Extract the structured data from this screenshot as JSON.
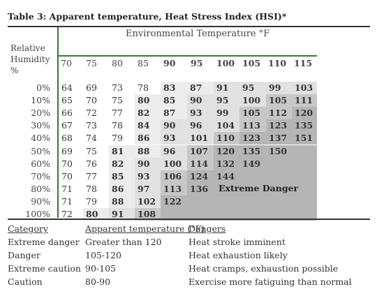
{
  "title": "Table 3: Apparent temperature, Heat Stress Index (HSI)*",
  "header": {
    "environmental_label": "Environmental Temperature °F",
    "rh_label": "Relative Humidity %",
    "temps": [
      "70",
      "75",
      "80",
      "85",
      "90",
      "95",
      "100",
      "105",
      "110",
      "115"
    ],
    "bold_from_index": 4
  },
  "rows": [
    {
      "rh": "0%",
      "vals": [
        "64",
        "69",
        "73",
        "78",
        "83",
        "87",
        "91",
        "95",
        "99",
        "103"
      ]
    },
    {
      "rh": "10%",
      "vals": [
        "65",
        "70",
        "75",
        "80",
        "85",
        "90",
        "95",
        "100",
        "105",
        "111"
      ]
    },
    {
      "rh": "20%",
      "vals": [
        "66",
        "72",
        "77",
        "82",
        "87",
        "93",
        "99",
        "105",
        "112",
        "120"
      ]
    },
    {
      "rh": "30%",
      "vals": [
        "67",
        "73",
        "78",
        "84",
        "90",
        "96",
        "104",
        "113",
        "123",
        "135"
      ]
    },
    {
      "rh": "40%",
      "vals": [
        "68",
        "74",
        "79",
        "86",
        "93",
        "101",
        "110",
        "123",
        "137",
        "151"
      ]
    },
    {
      "rh": "50%",
      "vals": [
        "69",
        "75",
        "81",
        "88",
        "96",
        "107",
        "120",
        "135",
        "150",
        ""
      ]
    },
    {
      "rh": "60%",
      "vals": [
        "70",
        "76",
        "82",
        "90",
        "100",
        "114",
        "132",
        "149",
        "",
        ""
      ]
    },
    {
      "rh": "70%",
      "vals": [
        "70",
        "77",
        "85",
        "93",
        "106",
        "124",
        "144",
        "",
        "",
        ""
      ]
    },
    {
      "rh": "80%",
      "vals": [
        "71",
        "78",
        "86",
        "97",
        "113",
        "136",
        "",
        "",
        "",
        ""
      ]
    },
    {
      "rh": "90%",
      "vals": [
        "71",
        "79",
        "88",
        "102",
        "122",
        "",
        "",
        "",
        "",
        ""
      ]
    },
    {
      "rh": "100%",
      "vals": [
        "72",
        "80",
        "91",
        "108",
        "",
        "",
        "",
        "",
        "",
        ""
      ]
    }
  ],
  "extreme_danger_label": "Extreme Danger",
  "legend": {
    "headers": {
      "category": "Category",
      "apparent": "Apparent temperature (°F)",
      "dangers": "Dangers"
    },
    "items": [
      {
        "category": "Extreme danger",
        "range": "Greater than 120",
        "danger": "Heat stroke imminent"
      },
      {
        "category": "Danger",
        "range": "105-120",
        "danger": "Heat exhaustion likely"
      },
      {
        "category": "Extreme caution",
        "range": "90-105",
        "danger": "Heat cramps, exhaustion possible"
      },
      {
        "category": "Caution",
        "range": "80-90",
        "danger": "Exercise more fatiguing than normal"
      }
    ]
  },
  "colors": {
    "caution": "#ececec",
    "extreme_caution": "#e1e1e1",
    "danger": "#c7c7c7",
    "extreme_danger": "#b5b5b5",
    "rule_green": "#2e7d32"
  }
}
